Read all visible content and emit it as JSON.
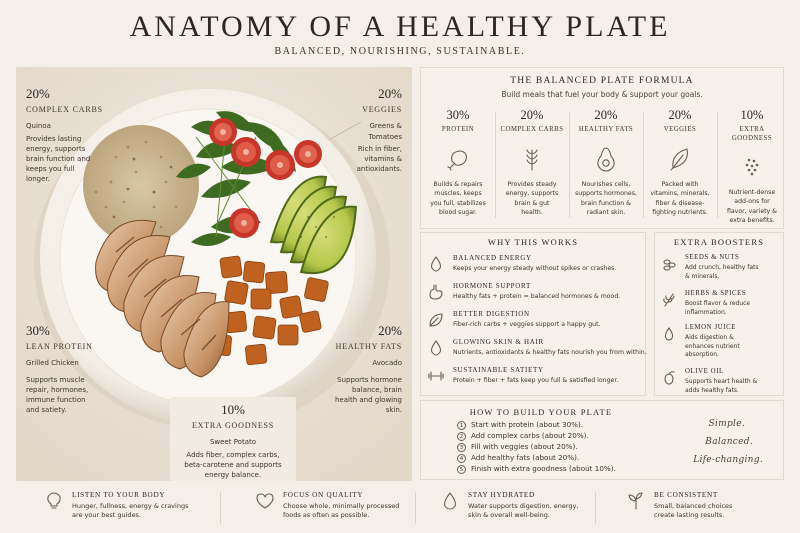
{
  "title": "ANATOMY OF A HEALTHY PLATE",
  "subtitle": "BALANCED, NOURISHING, SUSTAINABLE.",
  "plate_callouts": {
    "carbs": {
      "pct": "20%",
      "name": "COMPLEX CARBS",
      "item": "Quinoa",
      "desc": [
        "Provides lasting",
        "energy, supports",
        "brain function and",
        "keeps you full",
        "longer."
      ]
    },
    "veggies": {
      "pct": "20%",
      "name": "VEGGIES",
      "item": "Greens &",
      "item2": "Tomatoes",
      "desc": [
        "Rich in fiber,",
        "vitamins &",
        "antioxidants."
      ]
    },
    "protein": {
      "pct": "30%",
      "name": "LEAN PROTEIN",
      "item": "Grilled Chicken",
      "desc": [
        "Supports muscle",
        "repair, hormones,",
        "immune function",
        "and satiety."
      ]
    },
    "fats": {
      "pct": "20%",
      "name": "HEALTHY FATS",
      "item": "Avocado",
      "desc": [
        "Supports hormone",
        "balance, brain",
        "health and glowing",
        "skin."
      ]
    },
    "goodness": {
      "pct": "10%",
      "name": "EXTRA GOODNESS",
      "item": "Sweet Potato",
      "desc": [
        "Adds fiber, complex carbs,",
        "beta-carotene and supports",
        "energy balance."
      ]
    }
  },
  "formula": {
    "title": "THE BALANCED PLATE FORMULA",
    "subtitle": "Build meals that fuel your body & support your goals.",
    "columns": [
      {
        "pct": "30%",
        "name": "PROTEIN",
        "icon": "chicken-leg-icon",
        "desc": [
          "Builds & repairs",
          "muscles, keeps",
          "you full, stabilizes",
          "blood sugar."
        ]
      },
      {
        "pct": "20%",
        "name": "COMPLEX CARBS",
        "icon": "wheat-icon",
        "desc": [
          "Provides steady",
          "energy, supports",
          "brain & gut",
          "health."
        ]
      },
      {
        "pct": "20%",
        "name": "HEALTHY FATS",
        "icon": "avocado-icon",
        "desc": [
          "Nourishes cells,",
          "supports hormones,",
          "brain function &",
          "radiant skin."
        ]
      },
      {
        "pct": "20%",
        "name": "VEGGIES",
        "icon": "leaf-icon",
        "desc": [
          "Packed with",
          "vitamins, minerals,",
          "fiber & disease-",
          "fighting nutrients."
        ]
      },
      {
        "pct": "10%",
        "name": "EXTRA",
        "name2": "GOODNESS",
        "icon": "seeds-icon",
        "desc": [
          "Nutrient-dense",
          "add-ons for",
          "flavor, variety &",
          "extra benefits."
        ]
      }
    ]
  },
  "why": {
    "title": "WHY THIS WORKS",
    "items": [
      {
        "title": "BALANCED ENERGY",
        "desc": "Keeps your energy steady without spikes or crashes.",
        "icon": "drop-icon"
      },
      {
        "title": "HORMONE SUPPORT",
        "desc": "Healthy fats + protein = balanced hormones & mood.",
        "icon": "stomach-icon"
      },
      {
        "title": "BETTER DIGESTION",
        "desc": "Fiber-rich carbs + veggies support a happy gut.",
        "icon": "leaf-icon"
      },
      {
        "title": "GLOWING SKIN & HAIR",
        "desc": "Nutrients, antioxidants & healthy fats nourish you from within.",
        "icon": "drop-icon"
      },
      {
        "title": "SUSTAINABLE SATIETY",
        "desc": "Protein + fiber + fats keep you full & satisfied longer.",
        "icon": "dumbbell-icon"
      }
    ]
  },
  "boosters": {
    "title": "EXTRA BOOSTERS",
    "items": [
      {
        "title": "SEEDS & NUTS",
        "desc": [
          "Add crunch, healthy fats",
          "& minerals."
        ],
        "icon": "seeds-icon"
      },
      {
        "title": "HERBS & SPICES",
        "desc": [
          "Boost flavor & reduce",
          "inflammation."
        ],
        "icon": "herb-icon"
      },
      {
        "title": "LEMON JUICE",
        "desc": [
          "Aids digestion &",
          "enhances nutrient",
          "absorption."
        ],
        "icon": "lemon-drop-icon"
      },
      {
        "title": "OLIVE OIL",
        "desc": [
          "Supports heart health &",
          "adds healthy fats."
        ],
        "icon": "olive-icon"
      }
    ]
  },
  "build": {
    "title": "HOW TO BUILD YOUR PLATE",
    "steps": [
      {
        "n": "1",
        "text": "Start with protein (about 30%)."
      },
      {
        "n": "2",
        "text": "Add complex carbs (about 20%)."
      },
      {
        "n": "3",
        "text": "Fill with veggies (about 20%)."
      },
      {
        "n": "4",
        "text": "Add healthy fats (about 20%)."
      },
      {
        "n": "5",
        "text": "Finish with extra goodness (about 10%)."
      }
    ],
    "script": [
      "Simple.",
      "Balanced.",
      "Life-changing."
    ]
  },
  "tips": [
    {
      "title": "LISTEN TO YOUR BODY",
      "desc": [
        "Hunger, fullness, energy & cravings",
        "are your best guides."
      ],
      "icon": "lightbulb-icon"
    },
    {
      "title": "FOCUS ON QUALITY",
      "desc": [
        "Choose whole, minimally processed",
        "foods as often as possible."
      ],
      "icon": "heart-icon"
    },
    {
      "title": "STAY HYDRATED",
      "desc": [
        "Water supports digestion, energy,",
        "skin & overall well-being."
      ],
      "icon": "water-drop-icon"
    },
    {
      "title": "BE CONSISTENT",
      "desc": [
        "Small, balanced choices",
        "create lasting results."
      ],
      "icon": "sprout-icon"
    }
  ],
  "colors": {
    "background": "#f4efe8",
    "text": "#3d342c",
    "avocado": "#9bbb3c",
    "tomato": "#c8352a",
    "sweet_potato": "#c0621f"
  }
}
